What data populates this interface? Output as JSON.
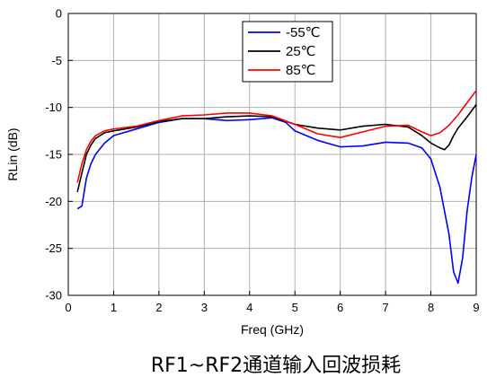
{
  "chart_data": {
    "type": "line",
    "title": "",
    "caption": "RF1~RF2通道输入回波损耗",
    "xlabel": "Freq (GHz)",
    "ylabel": "RLin (dB)",
    "xlim": [
      0,
      9
    ],
    "ylim": [
      -30,
      0
    ],
    "x_ticks": [
      0,
      1,
      2,
      3,
      4,
      5,
      6,
      7,
      8,
      9
    ],
    "y_ticks": [
      0,
      -5,
      -10,
      -15,
      -20,
      -25,
      -30
    ],
    "grid": true,
    "legend_position": "top-center",
    "series": [
      {
        "name": "-55℃",
        "color": "#0000ff",
        "points": [
          [
            0.2,
            -20.8
          ],
          [
            0.3,
            -20.5
          ],
          [
            0.4,
            -17.5
          ],
          [
            0.5,
            -16.0
          ],
          [
            0.6,
            -15.0
          ],
          [
            0.8,
            -13.8
          ],
          [
            1.0,
            -13.0
          ],
          [
            1.5,
            -12.3
          ],
          [
            2.0,
            -11.6
          ],
          [
            2.5,
            -11.2
          ],
          [
            3.0,
            -11.2
          ],
          [
            3.5,
            -11.4
          ],
          [
            4.0,
            -11.3
          ],
          [
            4.5,
            -11.1
          ],
          [
            4.8,
            -11.6
          ],
          [
            5.0,
            -12.5
          ],
          [
            5.5,
            -13.5
          ],
          [
            6.0,
            -14.2
          ],
          [
            6.5,
            -14.1
          ],
          [
            7.0,
            -13.7
          ],
          [
            7.5,
            -13.8
          ],
          [
            7.8,
            -14.3
          ],
          [
            8.0,
            -15.5
          ],
          [
            8.2,
            -18.5
          ],
          [
            8.4,
            -23.5
          ],
          [
            8.5,
            -27.5
          ],
          [
            8.6,
            -28.7
          ],
          [
            8.7,
            -26.0
          ],
          [
            8.8,
            -21.0
          ],
          [
            8.9,
            -17.5
          ],
          [
            9.0,
            -15.0
          ]
        ]
      },
      {
        "name": "25℃",
        "color": "#000000",
        "points": [
          [
            0.2,
            -19.0
          ],
          [
            0.3,
            -17.0
          ],
          [
            0.4,
            -15.0
          ],
          [
            0.5,
            -14.0
          ],
          [
            0.6,
            -13.3
          ],
          [
            0.8,
            -12.7
          ],
          [
            1.0,
            -12.5
          ],
          [
            1.5,
            -12.1
          ],
          [
            2.0,
            -11.5
          ],
          [
            2.5,
            -11.2
          ],
          [
            3.0,
            -11.2
          ],
          [
            3.5,
            -11.0
          ],
          [
            4.0,
            -10.9
          ],
          [
            4.5,
            -11.0
          ],
          [
            5.0,
            -11.8
          ],
          [
            5.5,
            -12.2
          ],
          [
            6.0,
            -12.4
          ],
          [
            6.5,
            -12.0
          ],
          [
            7.0,
            -11.8
          ],
          [
            7.5,
            -12.1
          ],
          [
            7.8,
            -13.0
          ],
          [
            8.0,
            -13.8
          ],
          [
            8.2,
            -14.3
          ],
          [
            8.3,
            -14.5
          ],
          [
            8.4,
            -14.0
          ],
          [
            8.5,
            -13.0
          ],
          [
            8.6,
            -12.2
          ],
          [
            8.8,
            -11.0
          ],
          [
            9.0,
            -9.7
          ]
        ]
      },
      {
        "name": "85℃",
        "color": "#ff0000",
        "points": [
          [
            0.2,
            -18.0
          ],
          [
            0.3,
            -16.0
          ],
          [
            0.4,
            -14.5
          ],
          [
            0.5,
            -13.6
          ],
          [
            0.6,
            -13.0
          ],
          [
            0.8,
            -12.5
          ],
          [
            1.0,
            -12.3
          ],
          [
            1.5,
            -12.0
          ],
          [
            2.0,
            -11.4
          ],
          [
            2.5,
            -10.9
          ],
          [
            3.0,
            -10.8
          ],
          [
            3.5,
            -10.6
          ],
          [
            4.0,
            -10.6
          ],
          [
            4.5,
            -10.9
          ],
          [
            5.0,
            -11.8
          ],
          [
            5.5,
            -12.8
          ],
          [
            6.0,
            -13.2
          ],
          [
            6.5,
            -12.6
          ],
          [
            7.0,
            -12.0
          ],
          [
            7.5,
            -11.9
          ],
          [
            7.8,
            -12.6
          ],
          [
            8.0,
            -13.0
          ],
          [
            8.2,
            -12.7
          ],
          [
            8.4,
            -11.9
          ],
          [
            8.6,
            -10.8
          ],
          [
            8.8,
            -9.5
          ],
          [
            9.0,
            -8.2
          ]
        ]
      }
    ]
  }
}
